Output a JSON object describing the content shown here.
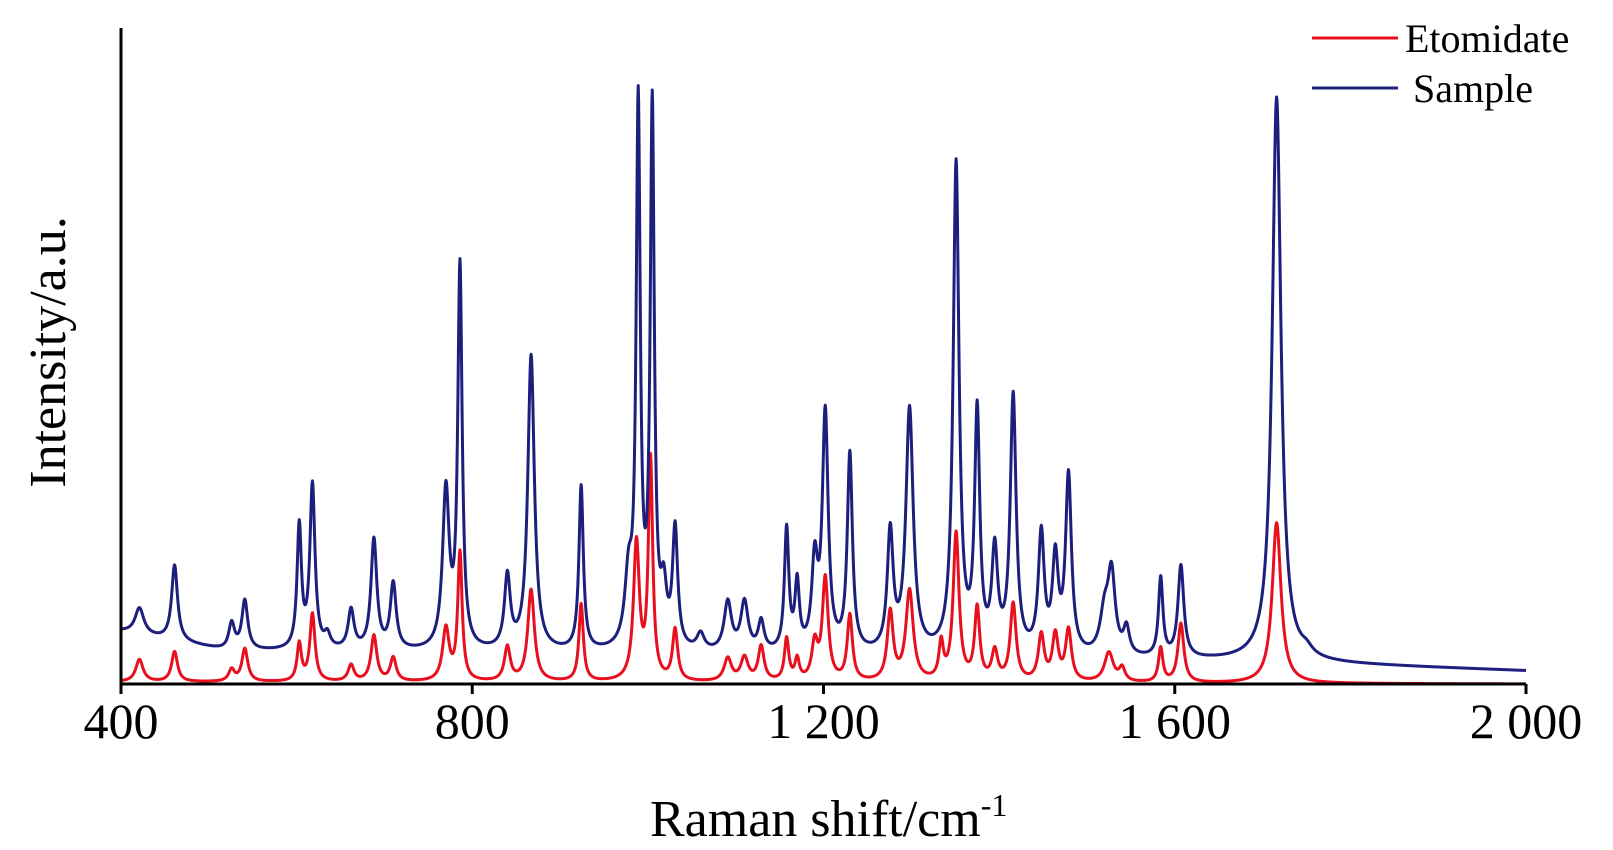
{
  "chart_data": {
    "type": "line",
    "title": "",
    "xlabel": "Raman shift/cm",
    "xlabel_superscript": "-1",
    "ylabel": "Intensity/a.u.",
    "xlim": [
      400,
      2000
    ],
    "ylim": [
      0,
      1
    ],
    "x_ticks": [
      400,
      800,
      1200,
      1600,
      2000
    ],
    "x_tick_labels": [
      "400",
      "800",
      "1 200",
      "1 600",
      "2 000"
    ],
    "y_ticks_shown": false,
    "grid": false,
    "legend_position": "top-right",
    "series": [
      {
        "name": "Etomidate",
        "color": "#e8101e",
        "baseline": [
          [
            400,
            0.003
          ],
          [
            2000,
            0.0
          ]
        ],
        "peaks": [
          [
            421,
            0.034,
            5
          ],
          [
            461,
            0.046,
            4
          ],
          [
            526,
            0.018,
            4
          ],
          [
            541,
            0.05,
            4
          ],
          [
            603,
            0.057,
            3
          ],
          [
            618,
            0.103,
            3.5
          ],
          [
            662,
            0.025,
            4
          ],
          [
            688,
            0.07,
            4
          ],
          [
            710,
            0.036,
            4
          ],
          [
            770,
            0.08,
            4.5
          ],
          [
            786,
            0.195,
            3
          ],
          [
            840,
            0.052,
            4
          ],
          [
            867,
            0.14,
            4.5
          ],
          [
            924,
            0.118,
            3
          ],
          [
            987,
            0.21,
            4
          ],
          [
            1003,
            0.335,
            3
          ],
          [
            1031,
            0.078,
            3.5
          ],
          [
            1091,
            0.035,
            5
          ],
          [
            1110,
            0.036,
            5
          ],
          [
            1129,
            0.053,
            4
          ],
          [
            1158,
            0.064,
            3
          ],
          [
            1170,
            0.032,
            3
          ],
          [
            1190,
            0.055,
            4
          ],
          [
            1202,
            0.156,
            4
          ],
          [
            1230,
            0.1,
            3.5
          ],
          [
            1276,
            0.105,
            4
          ],
          [
            1298,
            0.138,
            5
          ],
          [
            1334,
            0.055,
            3
          ],
          [
            1351,
            0.225,
            4
          ],
          [
            1375,
            0.11,
            3.5
          ],
          [
            1395,
            0.045,
            4
          ],
          [
            1416,
            0.118,
            4
          ],
          [
            1448,
            0.07,
            4
          ],
          [
            1464,
            0.07,
            4
          ],
          [
            1479,
            0.078,
            4
          ],
          [
            1525,
            0.045,
            6
          ],
          [
            1540,
            0.02,
            4
          ],
          [
            1584,
            0.052,
            3
          ],
          [
            1607,
            0.09,
            4
          ],
          [
            1716,
            0.245,
            6
          ]
        ]
      },
      {
        "name": "Sample",
        "color": "#1c1f7c",
        "baseline": [
          [
            400,
            0.08
          ],
          [
            520,
            0.05
          ],
          [
            1000,
            0.045
          ],
          [
            1700,
            0.034
          ],
          [
            2000,
            0.02
          ]
        ],
        "peaks": [
          [
            421,
            0.04,
            6
          ],
          [
            461,
            0.115,
            4
          ],
          [
            526,
            0.04,
            4
          ],
          [
            541,
            0.075,
            4
          ],
          [
            603,
            0.186,
            3
          ],
          [
            618,
            0.25,
            3.5
          ],
          [
            635,
            0.02,
            4
          ],
          [
            662,
            0.06,
            4
          ],
          [
            688,
            0.168,
            4
          ],
          [
            710,
            0.1,
            4
          ],
          [
            770,
            0.24,
            4.5
          ],
          [
            786,
            0.58,
            3
          ],
          [
            840,
            0.11,
            4
          ],
          [
            867,
            0.45,
            4.5
          ],
          [
            924,
            0.25,
            3
          ],
          [
            978,
            0.1,
            5
          ],
          [
            989,
            0.82,
            2.8
          ],
          [
            1005,
            0.82,
            2.8
          ],
          [
            1018,
            0.08,
            4
          ],
          [
            1031,
            0.18,
            3.5
          ],
          [
            1060,
            0.025,
            5
          ],
          [
            1091,
            0.075,
            5
          ],
          [
            1110,
            0.075,
            5
          ],
          [
            1129,
            0.045,
            4
          ],
          [
            1158,
            0.185,
            3
          ],
          [
            1170,
            0.1,
            3
          ],
          [
            1190,
            0.13,
            4
          ],
          [
            1202,
            0.36,
            4
          ],
          [
            1230,
            0.3,
            3.5
          ],
          [
            1276,
            0.18,
            4
          ],
          [
            1298,
            0.37,
            5
          ],
          [
            1351,
            0.745,
            4
          ],
          [
            1375,
            0.36,
            3.5
          ],
          [
            1395,
            0.15,
            4
          ],
          [
            1416,
            0.39,
            4
          ],
          [
            1448,
            0.18,
            4
          ],
          [
            1464,
            0.14,
            4
          ],
          [
            1479,
            0.27,
            4
          ],
          [
            1520,
            0.06,
            6
          ],
          [
            1528,
            0.12,
            5
          ],
          [
            1545,
            0.04,
            4
          ],
          [
            1584,
            0.12,
            3
          ],
          [
            1607,
            0.14,
            4
          ],
          [
            1716,
            0.86,
            6
          ],
          [
            1750,
            0.01,
            8
          ]
        ]
      }
    ]
  }
}
